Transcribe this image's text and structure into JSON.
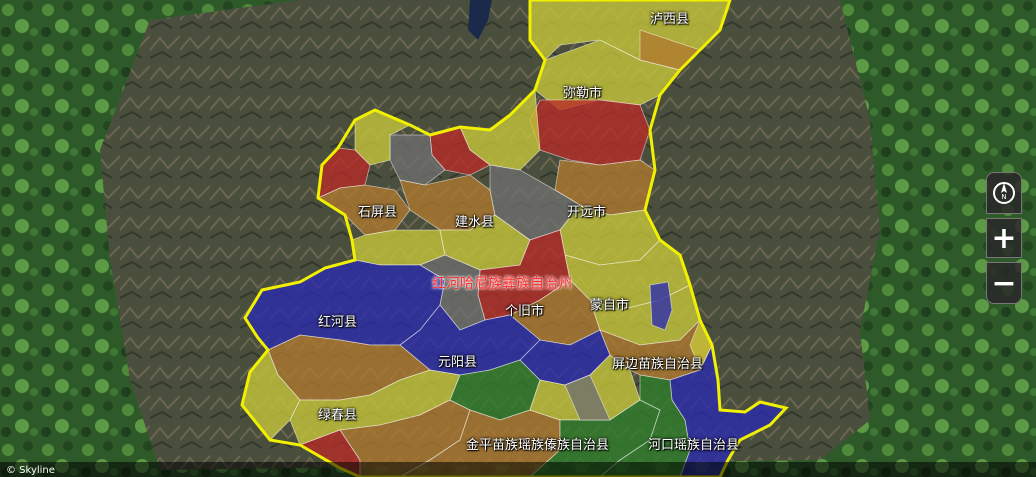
{
  "map": {
    "prefecture_label": "红河哈尼族彝族自治州",
    "county_labels": [
      {
        "id": "luxi",
        "text": "泸西县"
      },
      {
        "id": "mile",
        "text": "弥勒市"
      },
      {
        "id": "shiping",
        "text": "石屏县"
      },
      {
        "id": "jianshui",
        "text": "建水县"
      },
      {
        "id": "kaiyuan",
        "text": "开远市"
      },
      {
        "id": "mengzi",
        "text": "蒙自市"
      },
      {
        "id": "gejiu",
        "text": "个旧市"
      },
      {
        "id": "honghe",
        "text": "红河县"
      },
      {
        "id": "yuanyang",
        "text": "元阳县"
      },
      {
        "id": "pingbian",
        "text": "屏边苗族自治县"
      },
      {
        "id": "lvchun",
        "text": "绿春县"
      },
      {
        "id": "jinping",
        "text": "金平苗族瑶族傣族自治县"
      },
      {
        "id": "hekou",
        "text": "河口瑶族自治县"
      }
    ],
    "colors": {
      "boundary": "#f0f000",
      "yellow": "#c8c83a",
      "brown": "#b07a30",
      "red": "#b82a28",
      "blue": "#2a2ab0",
      "green": "#2f7f2a",
      "gray": "#6f6f6f"
    }
  },
  "controls": {
    "compass_icon": "compass-icon",
    "zoom_in_label": "+",
    "zoom_out_label": "−"
  },
  "attribution": "© Skyline"
}
